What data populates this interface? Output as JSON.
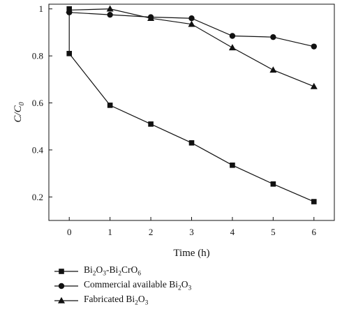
{
  "chart_data": {
    "type": "line",
    "xlabel": "Time (h)",
    "ylabel_main": "C/C",
    "ylabel_sub": "0",
    "xlim": [
      -0.5,
      6.5
    ],
    "ylim": [
      0.1,
      1.02
    ],
    "x_ticks": [
      0,
      1,
      2,
      3,
      4,
      5,
      6
    ],
    "y_ticks": [
      0.2,
      0.4,
      0.6,
      0.8,
      1
    ],
    "x_tick_labels": [
      "0",
      "1",
      "2",
      "3",
      "4",
      "5",
      "6"
    ],
    "y_tick_labels": [
      "0.2",
      "0.4",
      "0.6",
      "0.8",
      "1"
    ],
    "grid": false,
    "legend_placement": "bottom-left",
    "series": [
      {
        "name": "Bi2O3-Bi2CrO6",
        "legend_parts": [
          [
            "Bi",
            ""
          ],
          [
            "2",
            "sub"
          ],
          [
            "O",
            ""
          ],
          [
            "3",
            "sub"
          ],
          [
            "-Bi",
            ""
          ],
          [
            "2",
            "sub"
          ],
          [
            "CrO",
            ""
          ],
          [
            "6",
            "sub"
          ]
        ],
        "marker": "square",
        "x": [
          0,
          0,
          1,
          2,
          3,
          4,
          5,
          6
        ],
        "y": [
          1.0,
          0.81,
          0.59,
          0.51,
          0.43,
          0.335,
          0.255,
          0.18
        ]
      },
      {
        "name": "Commercial available Bi2O3",
        "legend_parts": [
          [
            "Commercial available Bi",
            ""
          ],
          [
            "2",
            "sub"
          ],
          [
            "O",
            ""
          ],
          [
            "3",
            "sub"
          ]
        ],
        "marker": "circle",
        "x": [
          0,
          1,
          2,
          3,
          4,
          5,
          6
        ],
        "y": [
          0.985,
          0.975,
          0.965,
          0.96,
          0.885,
          0.88,
          0.84
        ]
      },
      {
        "name": "Fabricated Bi2O3",
        "legend_parts": [
          [
            "Fabricated Bi",
            ""
          ],
          [
            "2",
            "sub"
          ],
          [
            "O",
            ""
          ],
          [
            "3",
            "sub"
          ]
        ],
        "marker": "triangle",
        "x": [
          0,
          1,
          2,
          3,
          4,
          5,
          6
        ],
        "y": [
          0.995,
          1.0,
          0.96,
          0.935,
          0.835,
          0.74,
          0.67
        ]
      }
    ]
  }
}
